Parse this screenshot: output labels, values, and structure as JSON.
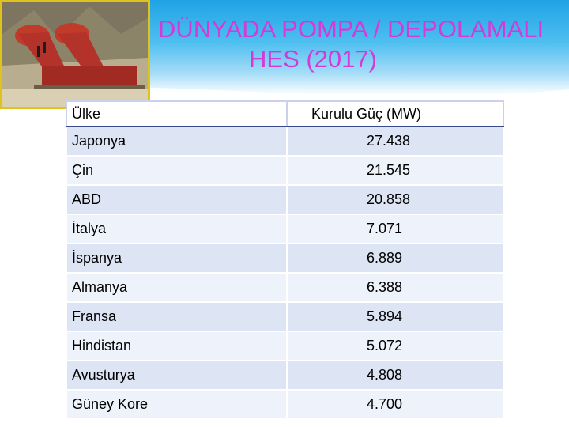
{
  "title": {
    "line1": "DÜNYADA POMPA / DEPOLAMALI",
    "line2": "HES (2017)"
  },
  "colors": {
    "title": "#d43ad8",
    "header_band": "#1fa3e6",
    "row_odd": "#dde5f4",
    "row_even": "#eef2fa",
    "frame": "#e0c21c"
  },
  "photo": {
    "icon": "hydro-plant-photo"
  },
  "table": {
    "headers": [
      "Ülke",
      "Kurulu Güç (MW)"
    ],
    "rows": [
      {
        "country": "Japonya",
        "capacity": "27.438"
      },
      {
        "country": "Çin",
        "capacity": "21.545"
      },
      {
        "country": "ABD",
        "capacity": "20.858"
      },
      {
        "country": "İtalya",
        "capacity": "7.071"
      },
      {
        "country": "İspanya",
        "capacity": "6.889"
      },
      {
        "country": "Almanya",
        "capacity": "6.388"
      },
      {
        "country": "Fransa",
        "capacity": "5.894"
      },
      {
        "country": "Hindistan",
        "capacity": "5.072"
      },
      {
        "country": "Avusturya",
        "capacity": "4.808"
      },
      {
        "country": "Güney Kore",
        "capacity": "4.700"
      }
    ]
  }
}
